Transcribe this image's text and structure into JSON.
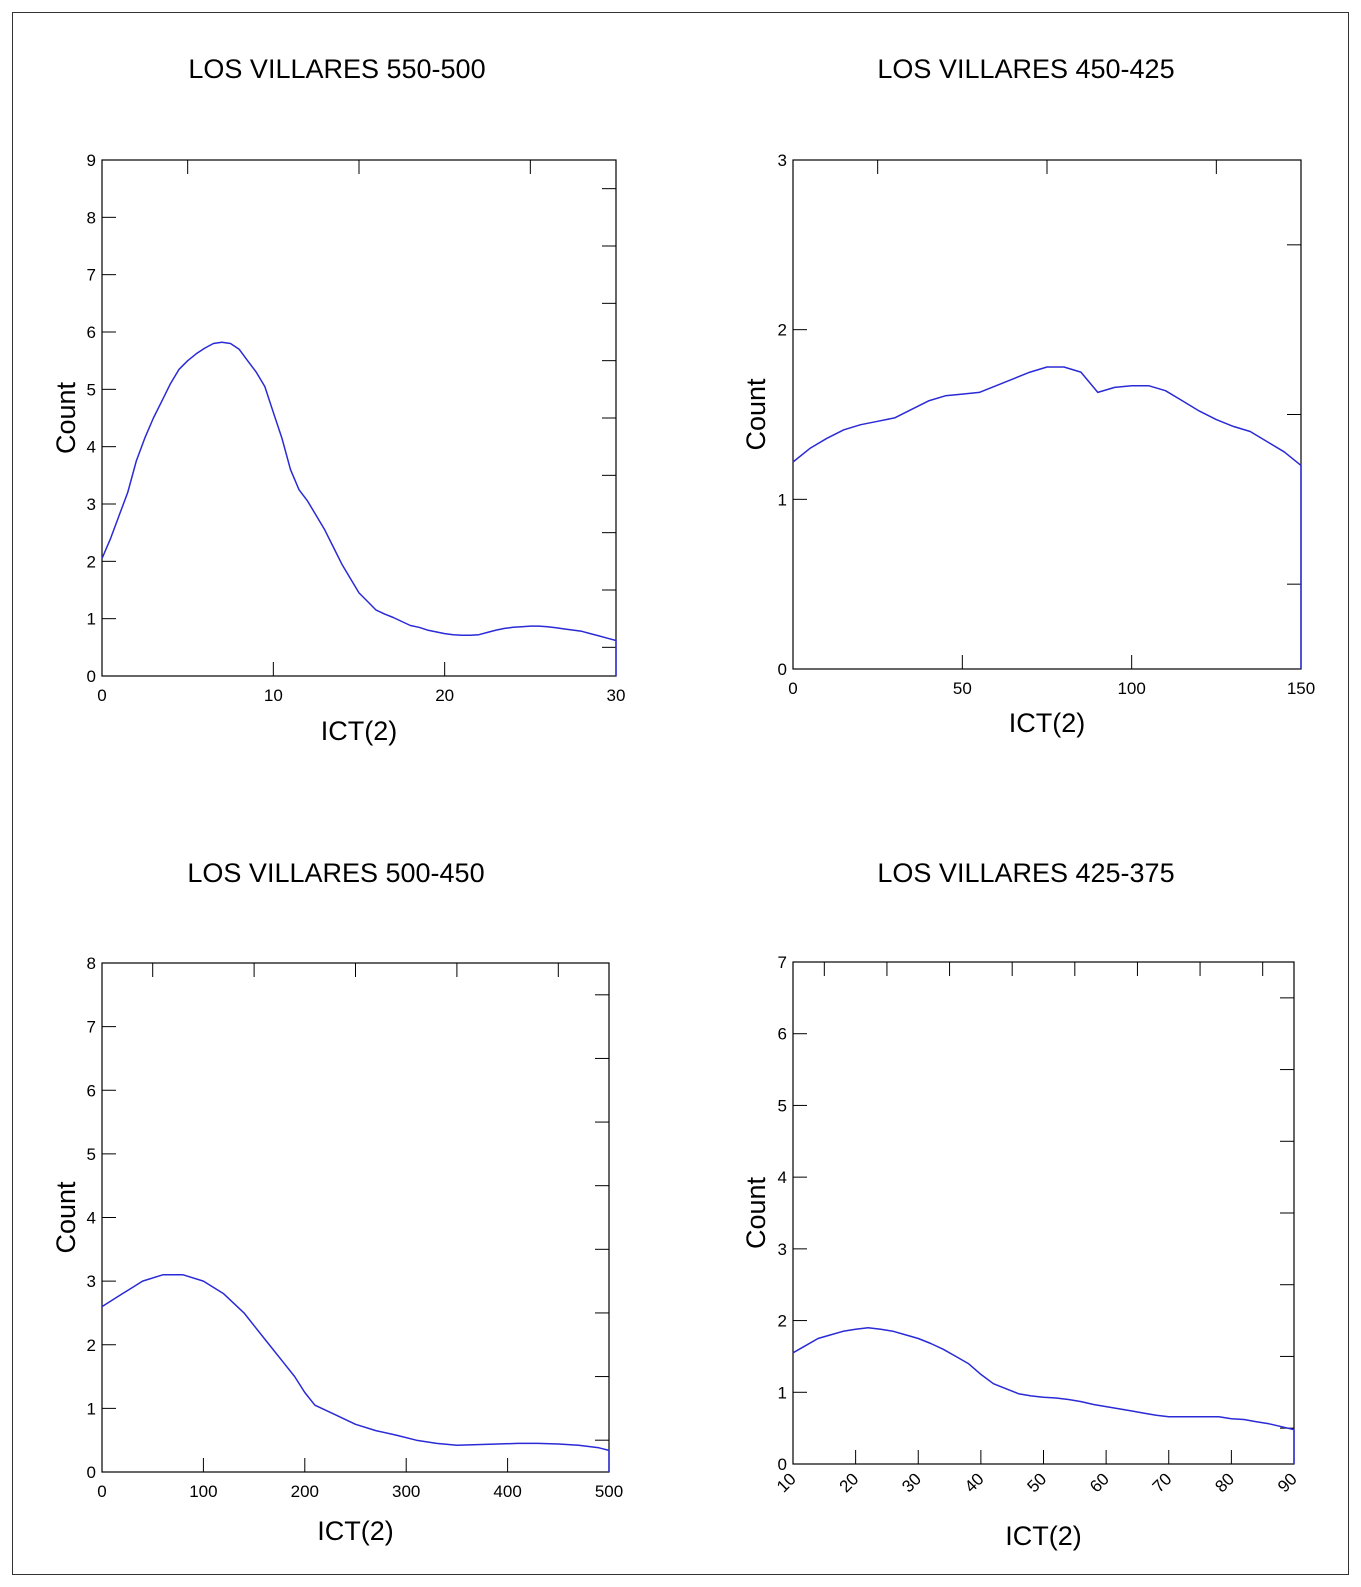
{
  "chart_data": [
    {
      "type": "line",
      "title": "LOS VILLARES 550-500",
      "xlabel": "ICT(2)",
      "ylabel": "Count",
      "xlim": [
        0,
        30
      ],
      "ylim": [
        0,
        9
      ],
      "xticks": [
        "0",
        "10",
        "20",
        "30"
      ],
      "yticks": [
        "0",
        "1",
        "2",
        "3",
        "4",
        "5",
        "6",
        "7",
        "8",
        "9"
      ],
      "grid": false,
      "series": [
        {
          "color": "#2a2ad6",
          "x": [
            0,
            0.5,
            1,
            1.5,
            2,
            2.5,
            3,
            3.5,
            4,
            4.5,
            5,
            5.5,
            6,
            6.5,
            7,
            7.5,
            8,
            8.5,
            9,
            9.5,
            10,
            10.5,
            11,
            11.5,
            12,
            12.5,
            13,
            13.5,
            14,
            14.5,
            15,
            15.5,
            16,
            16.5,
            17,
            17.5,
            18,
            18.5,
            19,
            19.5,
            20,
            20.5,
            21,
            21.5,
            22,
            22.5,
            23,
            23.5,
            24,
            24.5,
            25,
            25.5,
            26,
            26.5,
            27,
            27.5,
            28,
            28.5,
            29,
            29.5,
            30
          ],
          "y": [
            2.05,
            2.4,
            2.8,
            3.2,
            3.75,
            4.15,
            4.5,
            4.8,
            5.1,
            5.35,
            5.5,
            5.62,
            5.72,
            5.8,
            5.82,
            5.8,
            5.7,
            5.5,
            5.3,
            5.05,
            4.6,
            4.15,
            3.6,
            3.25,
            3.05,
            2.8,
            2.55,
            2.25,
            1.95,
            1.7,
            1.45,
            1.3,
            1.15,
            1.08,
            1.02,
            0.95,
            0.88,
            0.85,
            0.8,
            0.77,
            0.74,
            0.72,
            0.71,
            0.71,
            0.72,
            0.76,
            0.8,
            0.83,
            0.85,
            0.86,
            0.87,
            0.87,
            0.86,
            0.84,
            0.82,
            0.8,
            0.78,
            0.74,
            0.7,
            0.66,
            0.62
          ]
        }
      ]
    },
    {
      "type": "line",
      "title": "LOS VILLARES 450-425",
      "xlabel": "ICT(2)",
      "ylabel": "Count",
      "xlim": [
        0,
        150
      ],
      "ylim": [
        0,
        3
      ],
      "xticks": [
        "0",
        "50",
        "100",
        "150"
      ],
      "yticks": [
        "0",
        "1",
        "2",
        "3"
      ],
      "grid": false,
      "series": [
        {
          "color": "#2a2ad6",
          "x": [
            0,
            5,
            10,
            15,
            20,
            25,
            30,
            35,
            40,
            45,
            50,
            55,
            60,
            65,
            70,
            75,
            80,
            85,
            90,
            95,
            100,
            105,
            110,
            115,
            120,
            125,
            130,
            135,
            140,
            145,
            150
          ],
          "y": [
            1.22,
            1.3,
            1.36,
            1.41,
            1.44,
            1.46,
            1.48,
            1.53,
            1.58,
            1.61,
            1.62,
            1.63,
            1.67,
            1.71,
            1.75,
            1.78,
            1.78,
            1.75,
            1.63,
            1.66,
            1.67,
            1.67,
            1.64,
            1.58,
            1.52,
            1.47,
            1.43,
            1.4,
            1.34,
            1.28,
            1.2
          ]
        }
      ]
    },
    {
      "type": "line",
      "title": "LOS VILLARES 500-450",
      "xlabel": "ICT(2)",
      "ylabel": "Count",
      "xlim": [
        0,
        500
      ],
      "ylim": [
        0,
        8
      ],
      "xticks": [
        "0",
        "100",
        "200",
        "300",
        "400",
        "500"
      ],
      "yticks": [
        "0",
        "1",
        "2",
        "3",
        "4",
        "5",
        "6",
        "7",
        "8"
      ],
      "grid": false,
      "series": [
        {
          "color": "#2a2ad6",
          "x": [
            0,
            20,
            40,
            60,
            80,
            100,
            120,
            140,
            160,
            180,
            190,
            200,
            210,
            230,
            250,
            270,
            290,
            310,
            330,
            350,
            370,
            390,
            410,
            430,
            450,
            470,
            490,
            500
          ],
          "y": [
            2.6,
            2.8,
            3.0,
            3.1,
            3.1,
            3.0,
            2.8,
            2.5,
            2.1,
            1.7,
            1.5,
            1.25,
            1.05,
            0.9,
            0.75,
            0.65,
            0.58,
            0.5,
            0.45,
            0.42,
            0.43,
            0.44,
            0.45,
            0.45,
            0.44,
            0.42,
            0.38,
            0.34
          ]
        }
      ]
    },
    {
      "type": "line",
      "title": "LOS VILLARES 425-375",
      "xlabel": "ICT(2)",
      "ylabel": "Count",
      "xlim": [
        10,
        90
      ],
      "ylim": [
        0,
        7
      ],
      "xticks": [
        "10",
        "20",
        "30",
        "40",
        "50",
        "60",
        "70",
        "80",
        "90"
      ],
      "yticks": [
        "0",
        "1",
        "2",
        "3",
        "4",
        "5",
        "6",
        "7"
      ],
      "grid": false,
      "series": [
        {
          "color": "#2a2ad6",
          "x": [
            10,
            12,
            14,
            16,
            18,
            20,
            22,
            24,
            26,
            28,
            30,
            32,
            34,
            36,
            38,
            40,
            42,
            44,
            46,
            48,
            50,
            52,
            54,
            56,
            58,
            60,
            62,
            64,
            66,
            68,
            70,
            72,
            74,
            76,
            78,
            80,
            82,
            84,
            86,
            88,
            90
          ],
          "y": [
            1.55,
            1.65,
            1.75,
            1.8,
            1.85,
            1.88,
            1.9,
            1.88,
            1.85,
            1.8,
            1.75,
            1.68,
            1.6,
            1.5,
            1.4,
            1.25,
            1.12,
            1.05,
            0.98,
            0.95,
            0.93,
            0.92,
            0.9,
            0.87,
            0.83,
            0.8,
            0.77,
            0.74,
            0.71,
            0.68,
            0.66,
            0.66,
            0.66,
            0.66,
            0.66,
            0.63,
            0.62,
            0.59,
            0.56,
            0.52,
            0.48
          ]
        }
      ]
    }
  ]
}
